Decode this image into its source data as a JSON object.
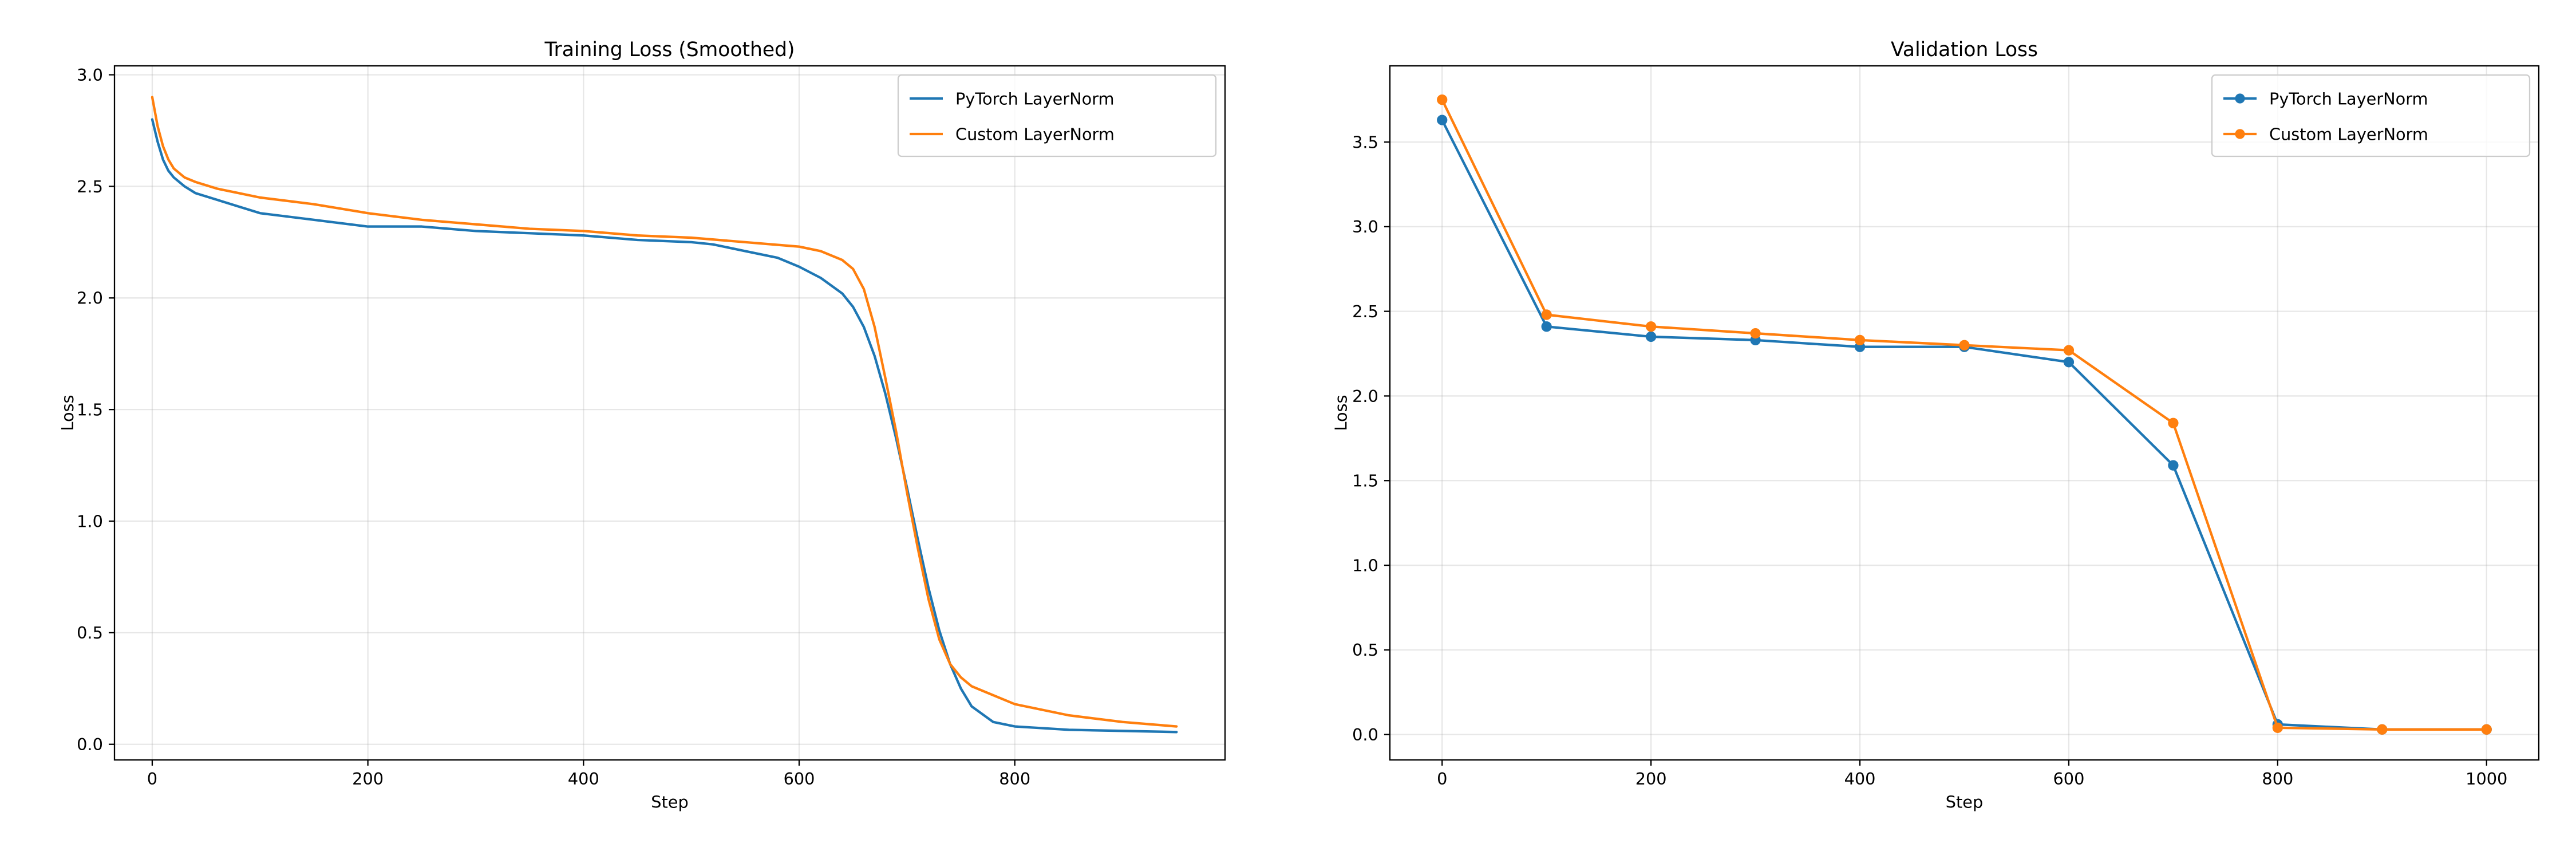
{
  "chart_data": [
    {
      "type": "line",
      "title": "Training Loss (Smoothed)",
      "xlabel": "Step",
      "ylabel": "Loss",
      "xlim": [
        -35,
        995
      ],
      "ylim": [
        -0.07,
        3.04
      ],
      "xticks": [
        0,
        200,
        400,
        600,
        800
      ],
      "yticks": [
        0.0,
        0.5,
        1.0,
        1.5,
        2.0,
        2.5,
        3.0
      ],
      "xtick_labels": [
        "0",
        "200",
        "400",
        "600",
        "800"
      ],
      "ytick_labels": [
        "0.0",
        "0.5",
        "1.0",
        "1.5",
        "2.0",
        "2.5",
        "3.0"
      ],
      "grid": true,
      "legend": "upper-right",
      "markers": false,
      "series": [
        {
          "name": "PyTorch LayerNorm",
          "color": "#1f77b4",
          "x": [
            0,
            5,
            10,
            15,
            20,
            30,
            40,
            60,
            80,
            100,
            150,
            200,
            250,
            300,
            350,
            400,
            450,
            500,
            520,
            550,
            580,
            600,
            620,
            640,
            650,
            660,
            670,
            680,
            690,
            700,
            710,
            720,
            730,
            740,
            750,
            760,
            780,
            800,
            850,
            900,
            950
          ],
          "y": [
            2.8,
            2.7,
            2.62,
            2.57,
            2.54,
            2.5,
            2.47,
            2.44,
            2.41,
            2.38,
            2.35,
            2.32,
            2.32,
            2.3,
            2.29,
            2.28,
            2.26,
            2.25,
            2.24,
            2.21,
            2.18,
            2.14,
            2.09,
            2.02,
            1.96,
            1.87,
            1.74,
            1.57,
            1.37,
            1.15,
            0.92,
            0.7,
            0.51,
            0.36,
            0.25,
            0.17,
            0.1,
            0.08,
            0.065,
            0.06,
            0.055
          ]
        },
        {
          "name": "Custom LayerNorm",
          "color": "#ff7f0e",
          "x": [
            0,
            5,
            10,
            15,
            20,
            30,
            40,
            60,
            80,
            100,
            150,
            200,
            250,
            300,
            350,
            400,
            450,
            500,
            550,
            600,
            620,
            640,
            650,
            660,
            670,
            680,
            690,
            700,
            710,
            720,
            730,
            740,
            750,
            760,
            780,
            800,
            850,
            900,
            950
          ],
          "y": [
            2.9,
            2.77,
            2.68,
            2.62,
            2.58,
            2.54,
            2.52,
            2.49,
            2.47,
            2.45,
            2.42,
            2.38,
            2.35,
            2.33,
            2.31,
            2.3,
            2.28,
            2.27,
            2.25,
            2.23,
            2.21,
            2.17,
            2.13,
            2.04,
            1.87,
            1.64,
            1.4,
            1.13,
            0.88,
            0.65,
            0.47,
            0.36,
            0.3,
            0.26,
            0.22,
            0.18,
            0.13,
            0.1,
            0.08
          ]
        }
      ]
    },
    {
      "type": "line",
      "title": "Validation Loss",
      "xlabel": "Step",
      "ylabel": "Loss",
      "xlim": [
        -50,
        1050
      ],
      "ylim": [
        -0.15,
        3.95
      ],
      "xticks": [
        0,
        200,
        400,
        600,
        800,
        1000
      ],
      "yticks": [
        0.0,
        0.5,
        1.0,
        1.5,
        2.0,
        2.5,
        3.0,
        3.5
      ],
      "xtick_labels": [
        "0",
        "200",
        "400",
        "600",
        "800",
        "1000"
      ],
      "ytick_labels": [
        "0.0",
        "0.5",
        "1.0",
        "1.5",
        "2.0",
        "2.5",
        "3.0",
        "3.5"
      ],
      "grid": true,
      "legend": "upper-right",
      "markers": true,
      "series": [
        {
          "name": "PyTorch LayerNorm",
          "color": "#1f77b4",
          "x": [
            0,
            100,
            200,
            300,
            400,
            500,
            600,
            700,
            800,
            900,
            1000
          ],
          "y": [
            3.63,
            2.41,
            2.35,
            2.33,
            2.29,
            2.29,
            2.2,
            1.59,
            0.06,
            0.03,
            0.03
          ]
        },
        {
          "name": "Custom LayerNorm",
          "color": "#ff7f0e",
          "x": [
            0,
            100,
            200,
            300,
            400,
            500,
            600,
            700,
            800,
            900,
            1000
          ],
          "y": [
            3.75,
            2.48,
            2.41,
            2.37,
            2.33,
            2.3,
            2.27,
            1.84,
            0.04,
            0.03,
            0.03
          ]
        }
      ]
    }
  ]
}
